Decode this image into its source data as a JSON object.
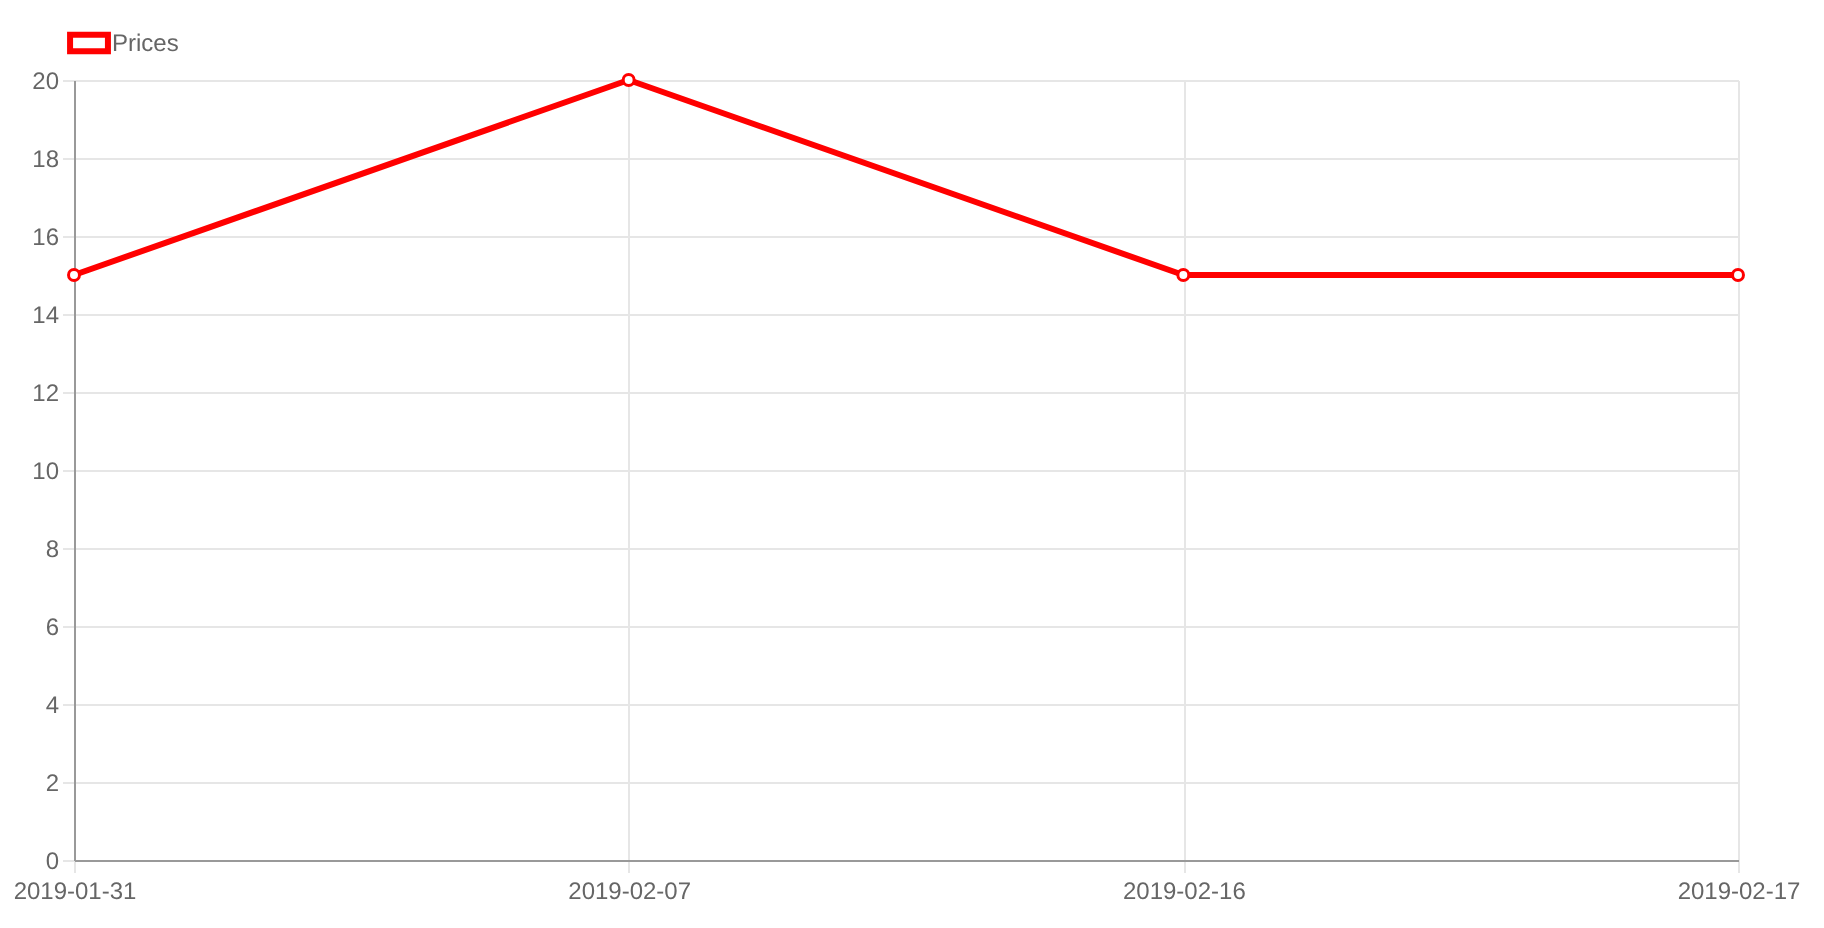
{
  "chart_data": {
    "type": "line",
    "categories": [
      "2019-01-31",
      "2019-02-07",
      "2019-02-16",
      "2019-02-17"
    ],
    "series": [
      {
        "name": "Prices",
        "color": "#ff0000",
        "values": [
          15,
          20,
          15,
          15
        ]
      }
    ],
    "ylim": [
      0,
      20
    ],
    "yticks": [
      0,
      2,
      4,
      6,
      8,
      10,
      12,
      14,
      16,
      18,
      20
    ],
    "grid": true,
    "legend": "top",
    "marker": "circle",
    "line_style": "solid"
  }
}
